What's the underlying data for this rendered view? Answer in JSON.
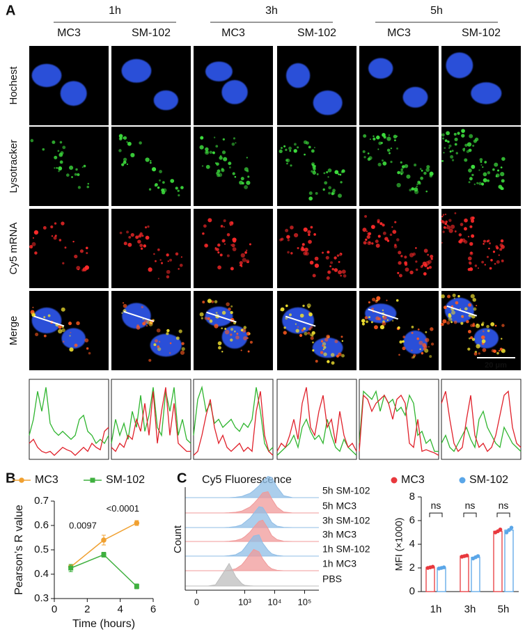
{
  "figure": {
    "panel_labels": [
      "A",
      "B",
      "C"
    ],
    "time_headers": [
      "1h",
      "3h",
      "5h"
    ],
    "group_headers": [
      "MC3",
      "SM-102",
      "MC3",
      "SM-102",
      "MC3",
      "SM-102"
    ],
    "row_labels": [
      "Hochest",
      "Lysotracker",
      "Cy5 mRNA",
      "Merge"
    ],
    "scale_bar": "20 μm"
  },
  "chart_data": [
    {
      "type": "profile",
      "ylim": [
        0,
        1
      ],
      "series": [
        {
          "color": "#2fb52f",
          "values": [
            0.3,
            0.5,
            0.85,
            0.6,
            0.9,
            0.45,
            0.35,
            0.3,
            0.35,
            0.3,
            0.25,
            0.3,
            0.5,
            0.55,
            0.35,
            0.3,
            0.2,
            0.25,
            0.2,
            0.3
          ]
        },
        {
          "color": "#e0202a",
          "values": [
            0.2,
            0.25,
            0.15,
            0.1,
            0.08,
            0.1,
            0.05,
            0.1,
            0.15,
            0.12,
            0.1,
            0.05,
            0.1,
            0.15,
            0.1,
            0.2,
            0.15,
            0.12,
            0.35,
            0.4
          ]
        }
      ]
    },
    {
      "type": "profile",
      "ylim": [
        0,
        1
      ],
      "series": [
        {
          "color": "#2fb52f",
          "values": [
            0.2,
            0.5,
            0.3,
            0.45,
            0.25,
            0.6,
            0.4,
            0.8,
            0.35,
            0.55,
            0.9,
            0.4,
            0.3,
            0.85,
            0.6,
            0.9,
            0.3,
            0.5,
            0.25,
            0.2
          ]
        },
        {
          "color": "#e0202a",
          "values": [
            0.15,
            0.1,
            0.2,
            0.15,
            0.3,
            0.25,
            0.5,
            0.35,
            0.7,
            0.3,
            0.85,
            0.2,
            0.6,
            0.9,
            0.3,
            0.7,
            0.2,
            0.15,
            0.1,
            0.1
          ]
        }
      ]
    },
    {
      "type": "profile",
      "ylim": [
        0,
        1
      ],
      "series": [
        {
          "color": "#2fb52f",
          "values": [
            0.3,
            0.75,
            0.9,
            0.6,
            0.7,
            0.45,
            0.5,
            0.4,
            0.45,
            0.5,
            0.4,
            0.35,
            0.45,
            0.4,
            0.5,
            0.9,
            0.6,
            0.2,
            0.1,
            0.15
          ]
        },
        {
          "color": "#e0202a",
          "values": [
            0.05,
            0.1,
            0.3,
            0.55,
            0.75,
            0.4,
            0.2,
            0.3,
            0.15,
            0.1,
            0.15,
            0.2,
            0.1,
            0.15,
            0.1,
            0.6,
            0.85,
            0.3,
            0.1,
            0.05
          ]
        }
      ]
    },
    {
      "type": "profile",
      "ylim": [
        0,
        1
      ],
      "series": [
        {
          "color": "#2fb52f",
          "values": [
            0.05,
            0.1,
            0.15,
            0.2,
            0.3,
            0.15,
            0.4,
            0.5,
            0.35,
            0.25,
            0.3,
            0.2,
            0.5,
            0.3,
            0.15,
            0.1,
            0.25,
            0.15,
            0.1,
            0.05
          ]
        },
        {
          "color": "#e0202a",
          "values": [
            0.1,
            0.2,
            0.15,
            0.3,
            0.5,
            0.25,
            0.7,
            0.9,
            0.4,
            0.3,
            0.6,
            0.8,
            0.4,
            0.5,
            0.2,
            0.6,
            0.3,
            0.15,
            0.2,
            0.1
          ]
        }
      ]
    },
    {
      "type": "profile",
      "ylim": [
        0,
        1
      ],
      "series": [
        {
          "color": "#2fb52f",
          "values": [
            0.2,
            0.85,
            0.8,
            0.75,
            0.85,
            0.6,
            0.8,
            0.7,
            0.75,
            0.6,
            0.65,
            0.55,
            0.8,
            0.7,
            0.3,
            0.35,
            0.2,
            0.25,
            0.1,
            0.1
          ]
        },
        {
          "color": "#e0202a",
          "values": [
            0.1,
            0.8,
            0.75,
            0.6,
            0.7,
            0.75,
            0.8,
            0.7,
            0.5,
            0.75,
            0.8,
            0.7,
            0.2,
            0.15,
            0.5,
            0.1,
            0.12,
            0.1,
            0.08,
            0.05
          ]
        }
      ]
    },
    {
      "type": "profile",
      "ylim": [
        0,
        1
      ],
      "series": [
        {
          "color": "#2fb52f",
          "values": [
            0.2,
            0.3,
            0.15,
            0.1,
            0.2,
            0.3,
            0.4,
            0.25,
            0.15,
            0.5,
            0.6,
            0.4,
            0.3,
            0.2,
            0.15,
            0.4,
            0.3,
            0.2,
            0.15,
            0.1
          ]
        },
        {
          "color": "#e0202a",
          "values": [
            0.7,
            0.85,
            0.5,
            0.2,
            0.1,
            0.15,
            0.5,
            0.8,
            0.3,
            0.15,
            0.2,
            0.1,
            0.15,
            0.3,
            0.55,
            0.8,
            0.85,
            0.4,
            0.2,
            0.15
          ]
        }
      ]
    },
    {
      "type": "line",
      "x_label": "Time (hours)",
      "y_label": "Pearson’s R value",
      "x": [
        1,
        3,
        5
      ],
      "series": [
        {
          "name": "MC3",
          "color": "#f0a030",
          "marker": "circle",
          "values": [
            0.43,
            0.54,
            0.61
          ],
          "errors": [
            0.01,
            0.02,
            0.01
          ]
        },
        {
          "name": "SM-102",
          "color": "#3fb03f",
          "marker": "square",
          "values": [
            0.425,
            0.48,
            0.35
          ],
          "errors": [
            0.015,
            0.01,
            0.01
          ]
        }
      ],
      "annotations": [
        "0.0097",
        "<0.0001"
      ],
      "xlim": [
        0,
        6
      ],
      "xticks": [
        0,
        2,
        4,
        6
      ],
      "ylim": [
        0.3,
        0.7
      ],
      "yticks": [
        0.3,
        0.4,
        0.5,
        0.6,
        0.7
      ]
    },
    {
      "type": "ridgeline",
      "title": "Cy5  Fluorescence",
      "y_label": "Count",
      "x": [
        50,
        100,
        200,
        300,
        500,
        800,
        1000,
        1500,
        2000,
        3000,
        4000,
        6000,
        8000,
        12000,
        20000,
        40000
      ],
      "ylim": [
        0,
        100
      ],
      "xlim": [
        -50,
        300000
      ],
      "xticks": [
        {
          "value": 0,
          "label": "0"
        },
        {
          "value": 1000,
          "label": "10³"
        },
        {
          "value": 10000,
          "label": "10⁴"
        },
        {
          "value": 100000,
          "label": "10⁵"
        }
      ],
      "series": [
        {
          "name": "5h SM-102",
          "color": "#8fbde6",
          "values": [
            0,
            0,
            0,
            0,
            2,
            5,
            10,
            18,
            30,
            50,
            70,
            90,
            85,
            45,
            8,
            0
          ]
        },
        {
          "name": "5h MC3",
          "color": "#f09a9a",
          "values": [
            0,
            0,
            0,
            1,
            3,
            8,
            14,
            25,
            40,
            65,
            85,
            90,
            60,
            25,
            4,
            0
          ]
        },
        {
          "name": "3h SM-102",
          "color": "#8fbde6",
          "values": [
            0,
            0,
            0,
            1,
            4,
            12,
            22,
            40,
            60,
            88,
            85,
            50,
            22,
            6,
            1,
            0
          ]
        },
        {
          "name": "3h MC3",
          "color": "#f09a9a",
          "values": [
            0,
            0,
            0,
            1,
            4,
            12,
            20,
            40,
            60,
            85,
            90,
            55,
            25,
            8,
            1,
            0
          ]
        },
        {
          "name": "1h SM-102",
          "color": "#8fbde6",
          "values": [
            0,
            0,
            0,
            2,
            6,
            20,
            35,
            65,
            85,
            90,
            55,
            25,
            10,
            3,
            0,
            0
          ]
        },
        {
          "name": "1h MC3",
          "color": "#f09a9a",
          "values": [
            0,
            0,
            0,
            2,
            8,
            25,
            40,
            70,
            90,
            80,
            50,
            20,
            8,
            2,
            0,
            0
          ]
        },
        {
          "name": "PBS",
          "color": "#bdbdbd",
          "values": [
            0,
            5,
            60,
            95,
            40,
            10,
            3,
            1,
            0,
            0,
            0,
            0,
            0,
            0,
            0,
            0
          ]
        }
      ]
    },
    {
      "type": "bar",
      "y_label": "MFI (×1000)",
      "categories": [
        "1h",
        "3h",
        "5h"
      ],
      "series": [
        {
          "name": "MC3",
          "color": "#e8383d",
          "values": [
            2.05,
            3.0,
            5.1
          ],
          "points": [
            [
              2.0,
              2.05,
              2.1
            ],
            [
              2.95,
              3.0,
              3.05
            ],
            [
              5.0,
              5.1,
              5.25
            ]
          ]
        },
        {
          "name": "SM-102",
          "color": "#5aa6e8",
          "values": [
            2.0,
            2.9,
            5.2
          ],
          "points": [
            [
              1.95,
              2.0,
              2.05
            ],
            [
              2.8,
              2.9,
              3.0
            ],
            [
              5.0,
              5.2,
              5.4
            ]
          ]
        }
      ],
      "annotations": [
        "ns",
        "ns",
        "ns"
      ],
      "ylim": [
        0,
        8
      ],
      "yticks": [
        0,
        2,
        4,
        6,
        8
      ]
    }
  ]
}
